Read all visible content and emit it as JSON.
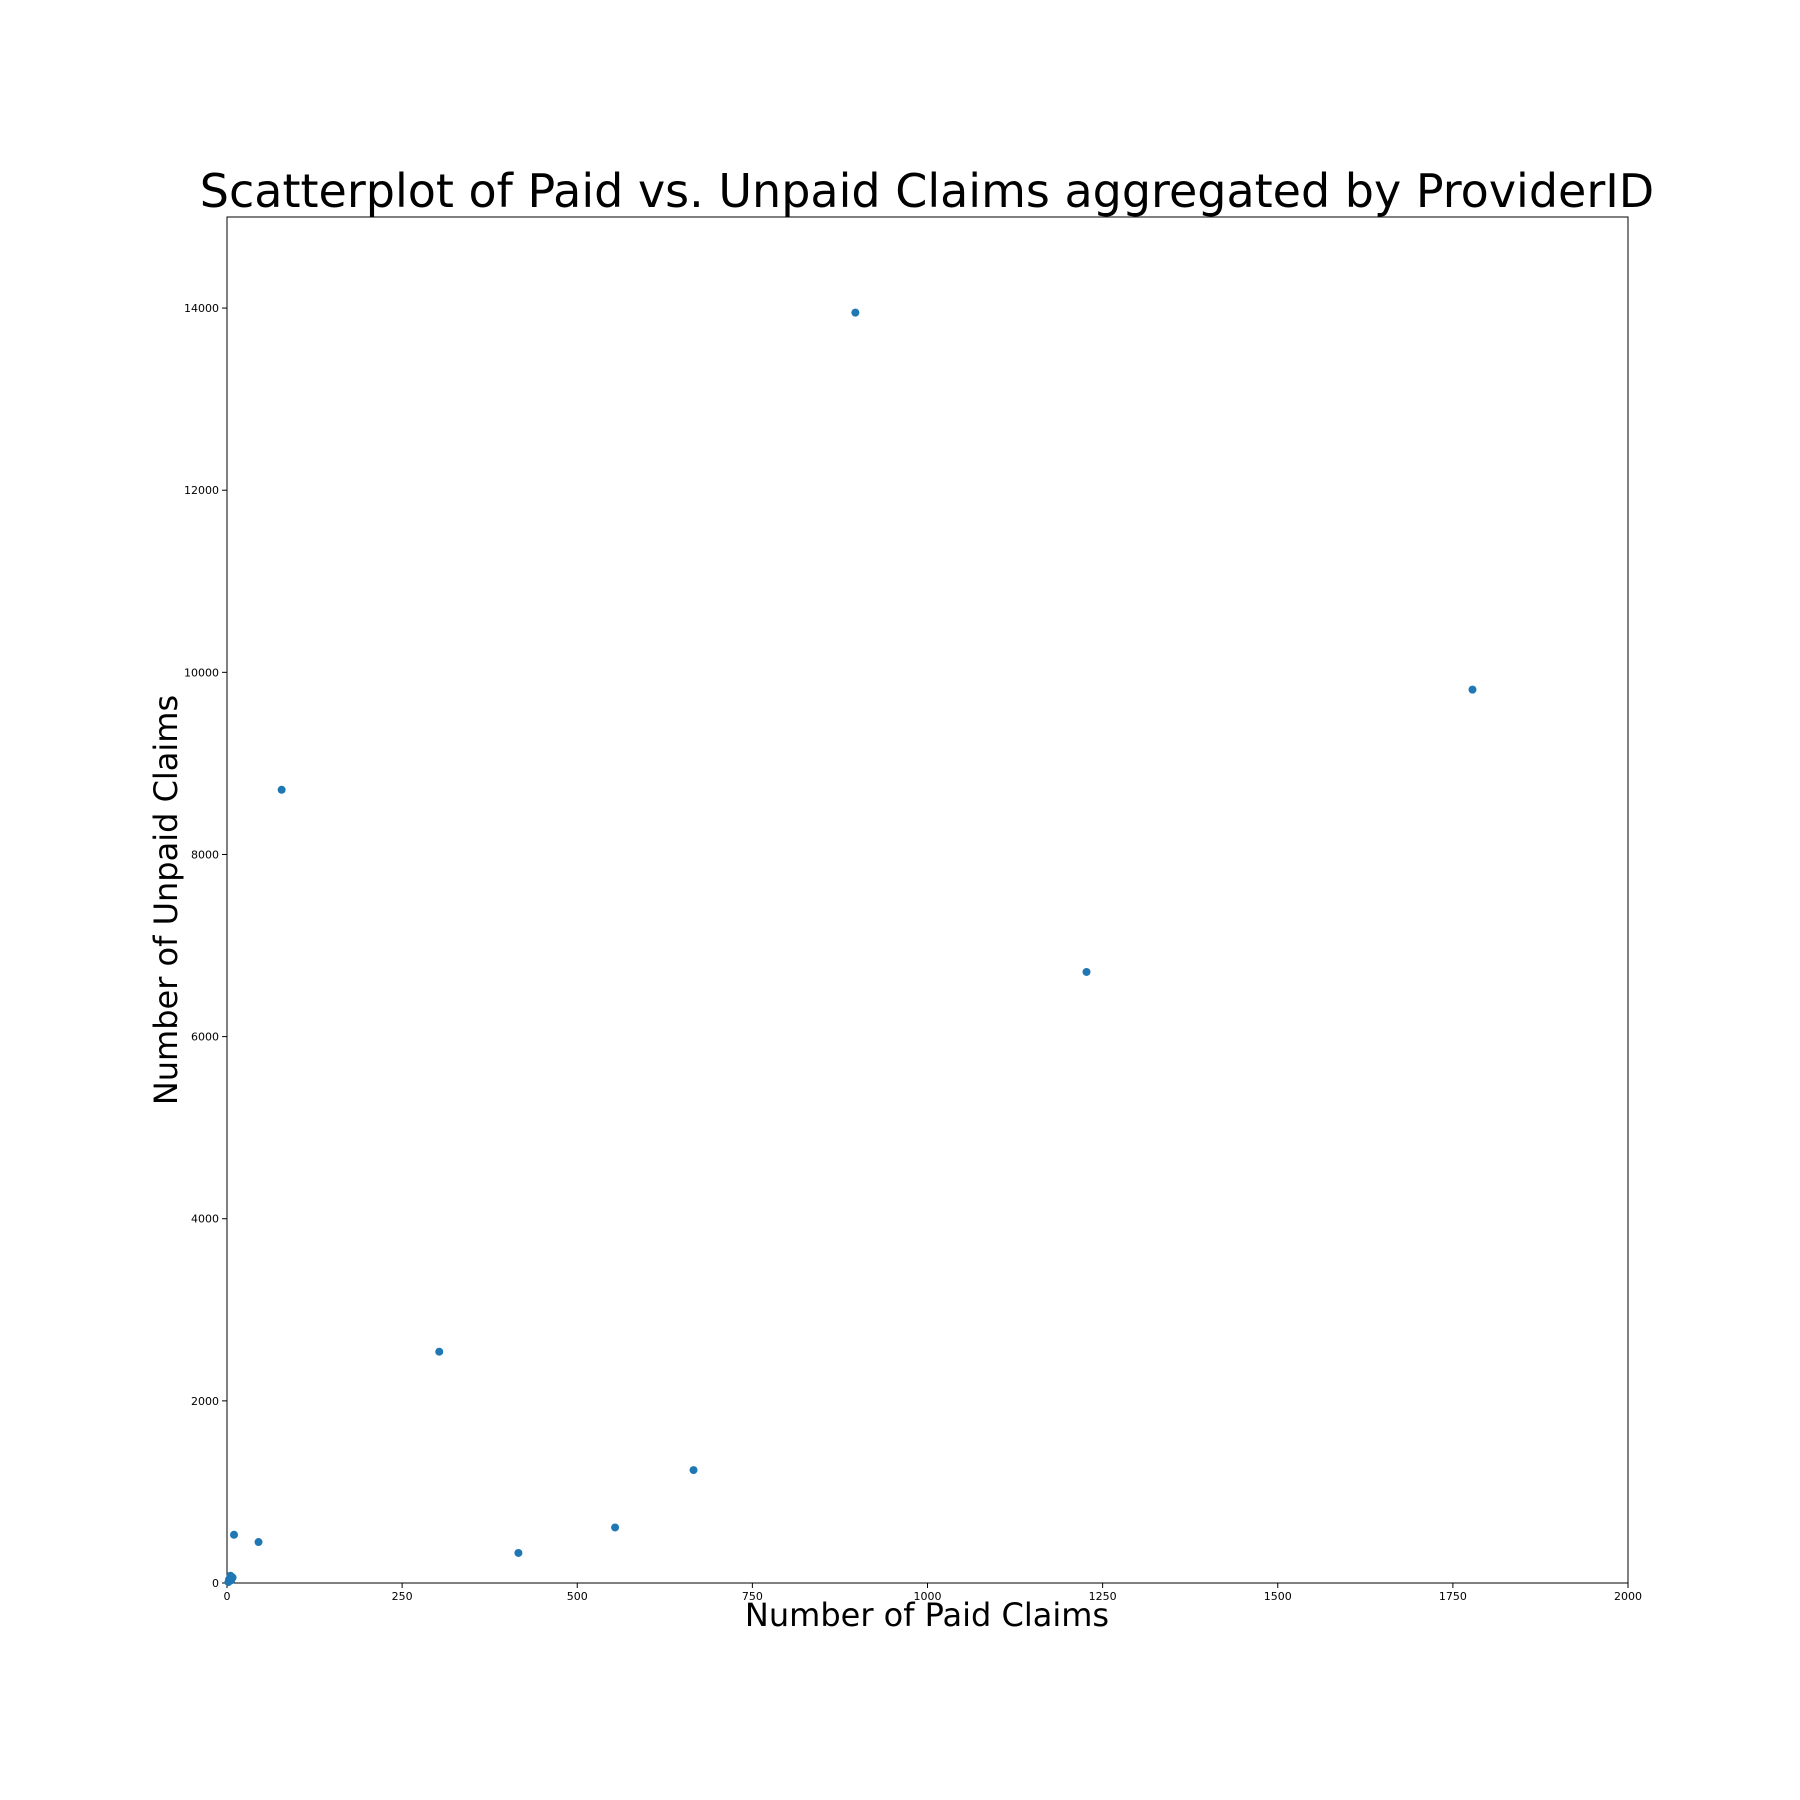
{
  "chart_data": {
    "type": "scatter",
    "title": "Scatterplot of Paid vs. Unpaid Claims aggregated by ProviderID",
    "xlabel": "Number of Paid Claims",
    "ylabel": "Number of Unpaid Claims",
    "xlim": [
      0,
      2000
    ],
    "ylim": [
      0,
      15000
    ],
    "xticks": [
      0,
      250,
      500,
      750,
      1000,
      1250,
      1500,
      1750,
      2000
    ],
    "xtick_labels": [
      "0",
      "250",
      "500",
      "750",
      "1000",
      "1250",
      "1500",
      "1750",
      "2000"
    ],
    "yticks": [
      0,
      2000,
      4000,
      6000,
      8000,
      10000,
      12000,
      14000
    ],
    "ytick_labels": [
      "0",
      "2000",
      "4000",
      "6000",
      "8000",
      "10000",
      "12000",
      "14000"
    ],
    "grid": false,
    "color": "#1f77b4",
    "points": [
      {
        "x": 897,
        "y": 13950
      },
      {
        "x": 1778,
        "y": 9810
      },
      {
        "x": 78,
        "y": 8710
      },
      {
        "x": 1227,
        "y": 6710
      },
      {
        "x": 303,
        "y": 2540
      },
      {
        "x": 666,
        "y": 1240
      },
      {
        "x": 554,
        "y": 610
      },
      {
        "x": 10,
        "y": 530
      },
      {
        "x": 45,
        "y": 450
      },
      {
        "x": 416,
        "y": 330
      },
      {
        "x": 8,
        "y": 60
      },
      {
        "x": 5,
        "y": 80
      },
      {
        "x": 3,
        "y": 40
      },
      {
        "x": 2,
        "y": 10
      },
      {
        "x": 6,
        "y": 30
      }
    ]
  }
}
